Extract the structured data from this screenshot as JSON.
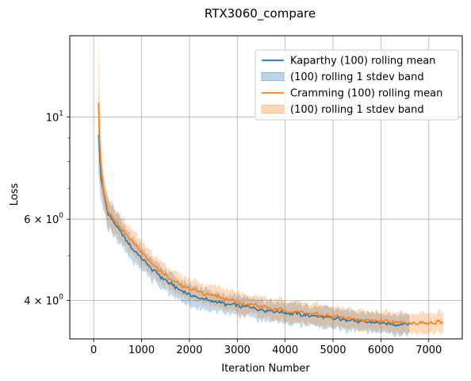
{
  "chart_data": {
    "type": "line",
    "title": "RTX3060_compare",
    "xlabel": "Iteration Number",
    "ylabel": "Loss",
    "xlim": [
      -500,
      7700
    ],
    "ylim": [
      3.3,
      15.0
    ],
    "yscale": "log",
    "grid": true,
    "legend_position": "top-right",
    "x_ticks": [
      {
        "value": 0,
        "label": "0"
      },
      {
        "value": 1000,
        "label": "1000"
      },
      {
        "value": 2000,
        "label": "2000"
      },
      {
        "value": 3000,
        "label": "3000"
      },
      {
        "value": 4000,
        "label": "4000"
      },
      {
        "value": 5000,
        "label": "5000"
      },
      {
        "value": 6000,
        "label": "6000"
      },
      {
        "value": 7000,
        "label": "7000"
      }
    ],
    "y_ticks": [
      {
        "value": 4,
        "base": "4 × 10",
        "exp": "0"
      },
      {
        "value": 6,
        "base": "6 × 10",
        "exp": "0"
      },
      {
        "value": 10,
        "base": "10",
        "exp": "1"
      }
    ],
    "y_minor_ticks": [
      5,
      7,
      8,
      9
    ],
    "series": [
      {
        "name": "Kaparthy (100) rolling mean",
        "band_name": "(100) rolling 1 stdev band",
        "color": "#1f77b4",
        "x": [
          100,
          130,
          160,
          200,
          250,
          300,
          400,
          500,
          600,
          800,
          1000,
          1200,
          1400,
          1600,
          1800,
          2000,
          2200,
          2400,
          2600,
          2800,
          3000,
          3200,
          3400,
          3600,
          3800,
          4000,
          4200,
          4400,
          4600,
          4800,
          5000,
          5200,
          5400,
          5600,
          5800,
          6000,
          6200,
          6400,
          6600
        ],
        "y": [
          9.2,
          8.0,
          7.3,
          6.9,
          6.5,
          6.2,
          5.95,
          5.75,
          5.55,
          5.2,
          4.92,
          4.7,
          4.5,
          4.35,
          4.22,
          4.12,
          4.05,
          4.0,
          3.96,
          3.92,
          3.9,
          3.87,
          3.84,
          3.81,
          3.79,
          3.76,
          3.74,
          3.72,
          3.7,
          3.68,
          3.66,
          3.64,
          3.62,
          3.6,
          3.58,
          3.57,
          3.56,
          3.55,
          3.55
        ],
        "band": [
          0.35,
          0.3,
          0.28,
          0.27,
          0.26,
          0.25,
          0.25,
          0.24,
          0.24,
          0.23,
          0.23,
          0.22,
          0.22,
          0.21,
          0.21,
          0.2,
          0.2,
          0.19,
          0.19,
          0.18,
          0.18,
          0.17,
          0.17,
          0.17,
          0.16,
          0.16,
          0.16,
          0.15,
          0.15,
          0.15,
          0.15,
          0.14,
          0.14,
          0.14,
          0.14,
          0.13,
          0.13,
          0.13,
          0.13
        ]
      },
      {
        "name": "Cramming (100) rolling mean",
        "band_name": "(100) rolling 1 stdev band",
        "color": "#ff7f0e",
        "x": [
          100,
          120,
          150,
          200,
          250,
          300,
          400,
          500,
          600,
          800,
          1000,
          1200,
          1400,
          1600,
          1800,
          2000,
          2200,
          2400,
          2600,
          2800,
          3000,
          3200,
          3400,
          3600,
          3800,
          4000,
          4200,
          4400,
          4600,
          4800,
          5000,
          5200,
          5400,
          5600,
          5800,
          6000,
          6200,
          6400,
          6600,
          6800,
          7000,
          7200,
          7300
        ],
        "y": [
          10.8,
          9.0,
          7.8,
          7.0,
          6.6,
          6.3,
          6.05,
          5.85,
          5.7,
          5.4,
          5.1,
          4.85,
          4.62,
          4.45,
          4.33,
          4.25,
          4.18,
          4.12,
          4.07,
          4.02,
          3.97,
          3.93,
          3.9,
          3.86,
          3.83,
          3.8,
          3.78,
          3.76,
          3.73,
          3.71,
          3.69,
          3.67,
          3.65,
          3.63,
          3.62,
          3.61,
          3.6,
          3.59,
          3.58,
          3.57,
          3.56,
          3.58,
          3.59
        ]
      }
    ]
  }
}
